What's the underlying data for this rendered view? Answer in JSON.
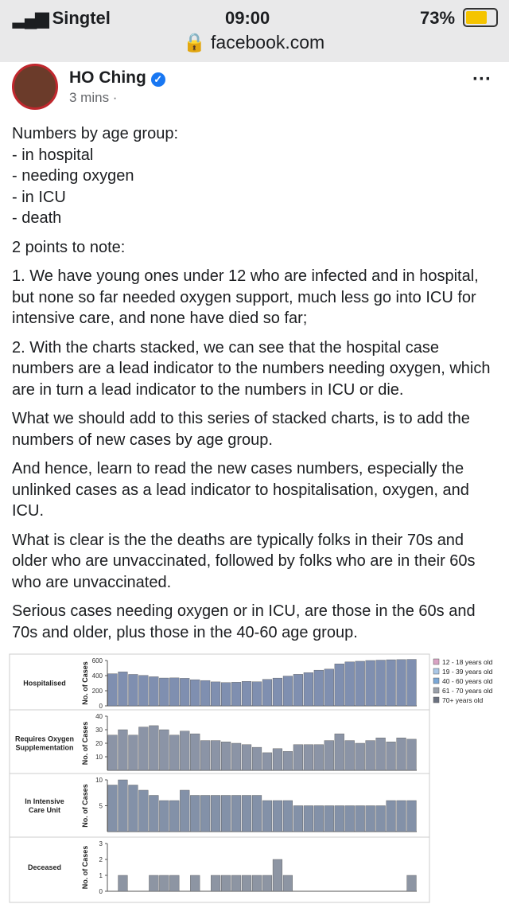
{
  "status_bar": {
    "carrier": "Singtel",
    "time": "09:00",
    "battery": "73%",
    "url": "facebook.com"
  },
  "post": {
    "author": "HO Ching",
    "time": "3 mins ·",
    "paragraphs": [
      "Numbers by age group:\n- in hospital\n- needing oxygen\n- in ICU\n- death",
      "2 points to note:",
      "1. We have young ones under 12 who are infected and in hospital, but none so far needed oxygen support, much less go into ICU for intensive care, and none have died so far;",
      "2. With the charts stacked, we can see that the hospital case numbers are a lead indicator to the numbers needing oxygen, which are in turn a lead indicator to the numbers in ICU or die.",
      "What we should add to this series of stacked charts, is to add the numbers of new cases by age group.",
      "And hence, learn to read the new cases numbers, especially the unlinked cases as a lead indicator to hospitalisation, oxygen, and ICU.",
      "What is clear is the the deaths are typically folks in their 70s and older who are unvaccinated, followed by folks who are in their 60s who are unvaccinated.",
      "Serious cases needing oxygen or in ICU, are those in the 60s and 70s and older, plus those in the 40-60 age group."
    ],
    "chart": {
      "y_label": "No. of Cases",
      "legend": [
        {
          "name": "12 - 18 years old",
          "color": "#d9a3c4"
        },
        {
          "name": "19 - 39 years old",
          "color": "#aac7e6"
        },
        {
          "name": "40 - 60 years old",
          "color": "#7aa7d6"
        },
        {
          "name": "61 - 70 years old",
          "color": "#9aa0aa"
        },
        {
          "name": "70+ years old",
          "color": "#6b7280"
        }
      ],
      "panels": [
        {
          "label": "Hospitalised",
          "color": "#7f8fb0",
          "ylim": [
            0,
            600
          ],
          "yticks": [
            0,
            200,
            400,
            600
          ],
          "values": [
            425,
            449,
            416,
            403,
            385,
            368,
            370,
            364,
            346,
            335,
            317,
            308,
            312,
            324,
            319,
            350,
            367,
            394,
            417,
            439,
            472,
            486,
            555,
            581,
            590,
            600,
            605,
            610,
            612,
            615
          ]
        },
        {
          "label": "Requires Oxygen Supplementation",
          "color": "#8b94a6",
          "ylim": [
            0,
            40
          ],
          "yticks": [
            10,
            20,
            30,
            40
          ],
          "values": [
            26,
            30,
            26,
            32,
            33,
            30,
            26,
            29,
            27,
            22,
            22,
            21,
            20,
            19,
            17,
            13,
            16,
            14,
            19,
            19,
            19,
            22,
            27,
            22,
            20,
            22,
            24,
            21,
            24,
            23
          ]
        },
        {
          "label": "In Intensive Care Unit",
          "color": "#8391a8",
          "ylim": [
            0,
            10
          ],
          "yticks": [
            5,
            10
          ],
          "values": [
            9,
            10,
            9,
            8,
            7,
            6,
            6,
            8,
            7,
            7,
            7,
            7,
            7,
            7,
            7,
            6,
            6,
            6,
            5,
            5,
            5,
            5,
            5,
            5,
            5,
            5,
            5,
            6,
            6,
            6
          ]
        },
        {
          "label": "Deceased",
          "color": "#8d95a3",
          "ylim": [
            0,
            3
          ],
          "yticks": [
            0,
            1,
            2,
            3
          ],
          "values": [
            0,
            1,
            0,
            0,
            1,
            1,
            1,
            0,
            1,
            0,
            1,
            1,
            1,
            1,
            1,
            1,
            2,
            1,
            0,
            0,
            0,
            0,
            0,
            0,
            0,
            0,
            0,
            0,
            0,
            1
          ]
        }
      ]
    }
  }
}
